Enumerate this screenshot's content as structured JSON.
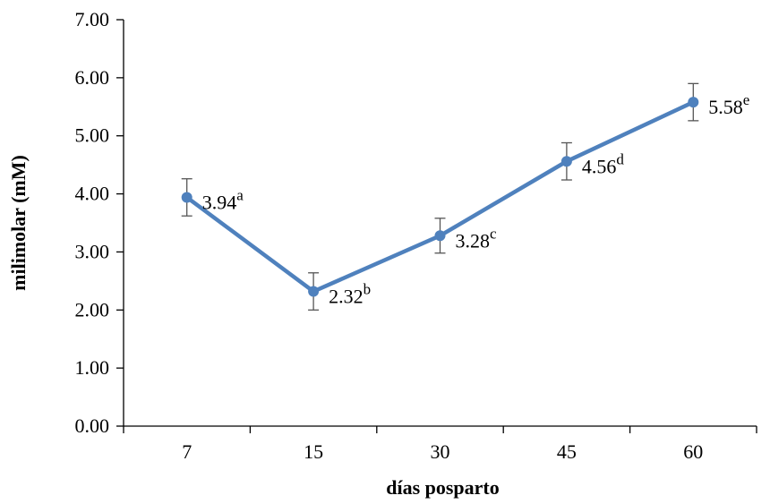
{
  "chart_data": {
    "type": "line",
    "categories": [
      "7",
      "15",
      "30",
      "45",
      "60"
    ],
    "series": [
      {
        "values": [
          3.94,
          2.32,
          3.28,
          4.56,
          5.58
        ],
        "error": [
          0.32,
          0.32,
          0.3,
          0.32,
          0.32
        ],
        "point_labels": [
          "3.94",
          "2.32",
          "3.28",
          "4.56",
          "5.58"
        ],
        "superscripts": [
          "a",
          "b",
          "c",
          "d",
          "e"
        ],
        "color": "#4f81bd"
      }
    ],
    "title": "",
    "xlabel": "días posparto",
    "ylabel": "milimolar (mM)",
    "ylim": [
      0,
      7
    ],
    "yticks": [
      "0.00",
      "1.00",
      "2.00",
      "3.00",
      "4.00",
      "5.00",
      "6.00",
      "7.00"
    ],
    "grid": false,
    "legend": "none"
  }
}
